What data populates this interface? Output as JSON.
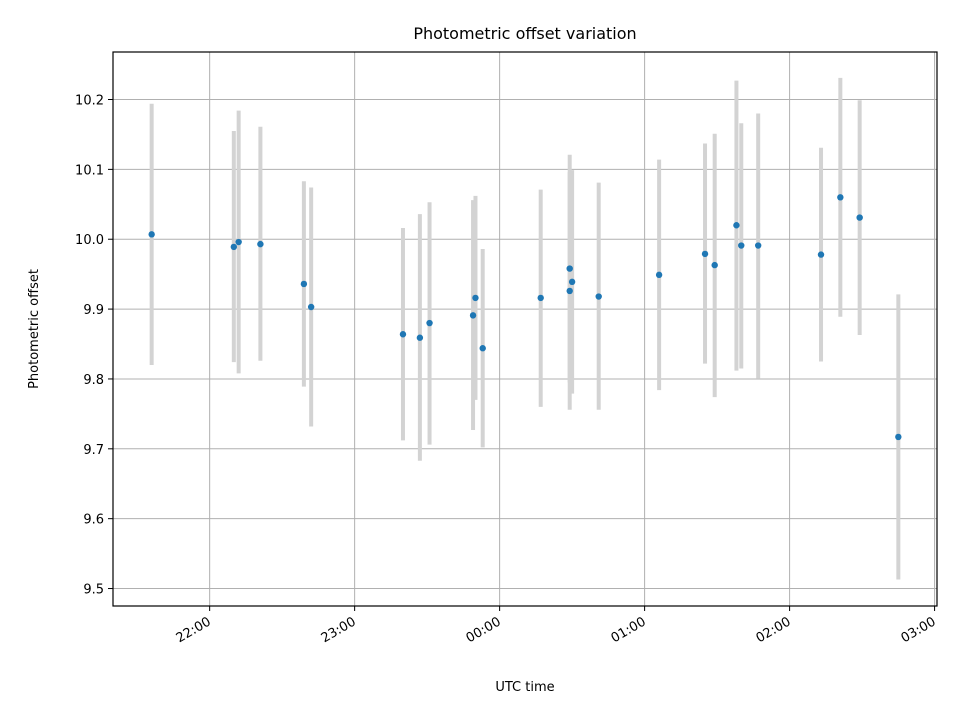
{
  "chart_data": {
    "type": "scatter",
    "title": "Photometric offset variation",
    "xlabel": "UTC time",
    "ylabel": "Photometric offset",
    "x_axis": "time",
    "xlim": [
      "21:20",
      "03:01"
    ],
    "ylim": [
      9.475,
      10.268
    ],
    "xticks": [
      "22:00",
      "23:00",
      "00:00",
      "01:00",
      "02:00",
      "03:00"
    ],
    "yticks": [
      9.5,
      9.6,
      9.7,
      9.8,
      9.9,
      10.0,
      10.1,
      10.2
    ],
    "ytick_labels": [
      "9.5",
      "9.6",
      "9.7",
      "9.8",
      "9.9",
      "10.0",
      "10.1",
      "10.2"
    ],
    "grid": true,
    "marker_color": "#1f77b4",
    "errorbar_color": "#d3d3d3",
    "points": [
      {
        "time": "21:36",
        "y": 10.007,
        "err_low": 9.82,
        "err_high": 10.194
      },
      {
        "time": "22:10",
        "y": 9.989,
        "err_low": 9.824,
        "err_high": 10.155
      },
      {
        "time": "22:12",
        "y": 9.996,
        "err_low": 9.808,
        "err_high": 10.184
      },
      {
        "time": "22:21",
        "y": 9.993,
        "err_low": 9.826,
        "err_high": 10.161
      },
      {
        "time": "22:39",
        "y": 9.936,
        "err_low": 9.789,
        "err_high": 10.083
      },
      {
        "time": "22:42",
        "y": 9.903,
        "err_low": 9.732,
        "err_high": 10.074
      },
      {
        "time": "23:20",
        "y": 9.864,
        "err_low": 9.712,
        "err_high": 10.016
      },
      {
        "time": "23:27",
        "y": 9.859,
        "err_low": 9.683,
        "err_high": 10.036
      },
      {
        "time": "23:31",
        "y": 9.88,
        "err_low": 9.706,
        "err_high": 10.053
      },
      {
        "time": "23:49",
        "y": 9.891,
        "err_low": 9.727,
        "err_high": 10.056
      },
      {
        "time": "23:50",
        "y": 9.916,
        "err_low": 9.77,
        "err_high": 10.062
      },
      {
        "time": "23:53",
        "y": 9.844,
        "err_low": 9.702,
        "err_high": 9.986
      },
      {
        "time": "00:17",
        "y": 9.916,
        "err_low": 9.76,
        "err_high": 10.071
      },
      {
        "time": "00:29",
        "y": 9.958,
        "err_low": 9.795,
        "err_high": 10.121
      },
      {
        "time": "00:29",
        "y": 9.926,
        "err_low": 9.756,
        "err_high": 10.096
      },
      {
        "time": "00:30",
        "y": 9.939,
        "err_low": 9.779,
        "err_high": 10.099
      },
      {
        "time": "00:41",
        "y": 9.918,
        "err_low": 9.756,
        "err_high": 10.081
      },
      {
        "time": "01:06",
        "y": 9.949,
        "err_low": 9.784,
        "err_high": 10.114
      },
      {
        "time": "01:25",
        "y": 9.979,
        "err_low": 9.822,
        "err_high": 10.137
      },
      {
        "time": "01:29",
        "y": 9.963,
        "err_low": 9.774,
        "err_high": 10.151
      },
      {
        "time": "01:38",
        "y": 10.02,
        "err_low": 9.812,
        "err_high": 10.227
      },
      {
        "time": "01:40",
        "y": 9.991,
        "err_low": 9.815,
        "err_high": 10.166
      },
      {
        "time": "01:47",
        "y": 9.991,
        "err_low": 9.801,
        "err_high": 10.18
      },
      {
        "time": "02:13",
        "y": 9.978,
        "err_low": 9.825,
        "err_high": 10.131
      },
      {
        "time": "02:21",
        "y": 10.06,
        "err_low": 9.889,
        "err_high": 10.231
      },
      {
        "time": "02:29",
        "y": 10.031,
        "err_low": 9.863,
        "err_high": 10.199
      },
      {
        "time": "02:45",
        "y": 9.717,
        "err_low": 9.513,
        "err_high": 9.921
      }
    ]
  }
}
